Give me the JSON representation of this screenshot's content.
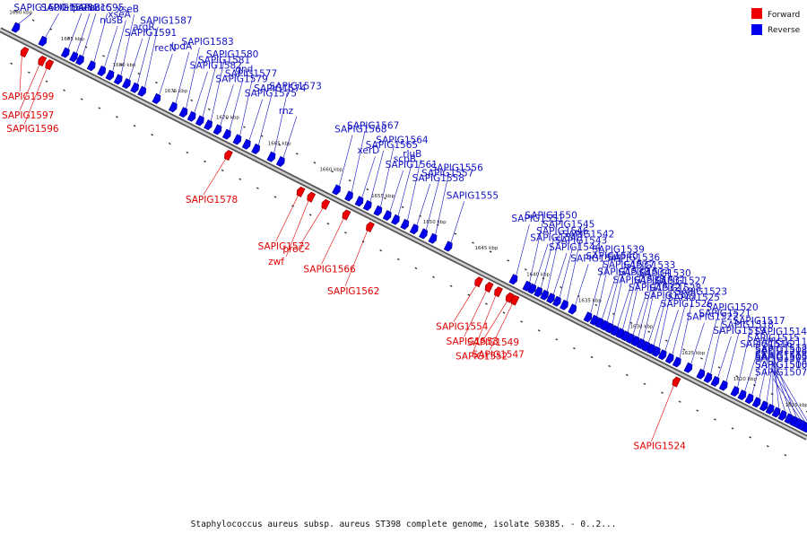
{
  "legend": {
    "forward_label": "Forward",
    "reverse_label": "Reverse",
    "forward_color": "#ee0000",
    "reverse_color": "#0000ee"
  },
  "caption": "Staphylococcus aureus subsp. aureus ST398 complete genome, isolate S0385. - 0..2...",
  "axis": {
    "start_kbp": 1690,
    "end_kbp": 1612,
    "tick_labels": [
      "1690 kbp",
      "1685 kbp",
      "1680 kbp",
      "1675 kbp",
      "1670 kbp",
      "1665 kbp",
      "1660 kbp",
      "1655 kbp",
      "1650 kbp",
      "1645 kbp",
      "1640 kbp",
      "1635 kbp",
      "1630 kbp",
      "1625 kbp",
      "1620 kbp",
      "1615 kbp"
    ],
    "tick_values": [
      1690,
      1685,
      1680,
      1675,
      1670,
      1665,
      1660,
      1655,
      1650,
      1645,
      1640,
      1635,
      1630,
      1625,
      1620,
      1615
    ]
  },
  "genes": [
    {
      "name": "SAPIG1600",
      "strand": "reverse",
      "pos": 1688.8
    },
    {
      "name": "SAPIG1599",
      "strand": "forward",
      "pos": 1687.3
    },
    {
      "name": "SAPIG1598",
      "strand": "reverse",
      "pos": 1686.2
    },
    {
      "name": "SAPIG1597",
      "strand": "forward",
      "pos": 1685.6
    },
    {
      "name": "SAPIG1596",
      "strand": "forward",
      "pos": 1684.9
    },
    {
      "name": "efp",
      "strand": "reverse",
      "pos": 1684.0
    },
    {
      "name": "SAPIG1595",
      "strand": "reverse",
      "pos": 1683.2
    },
    {
      "name": "accB",
      "strand": "reverse",
      "pos": 1682.6
    },
    {
      "name": "accC",
      "strand": "reverse",
      "pos": 1681.5
    },
    {
      "name": "nusB",
      "strand": "reverse",
      "pos": 1680.5
    },
    {
      "name": "xseA",
      "strand": "reverse",
      "pos": 1679.7
    },
    {
      "name": "xseB",
      "strand": "reverse",
      "pos": 1678.9
    },
    {
      "name": "SAPIG1591",
      "strand": "reverse",
      "pos": 1678.1
    },
    {
      "name": "argR",
      "strand": "reverse",
      "pos": 1677.3
    },
    {
      "name": "SAPIG1587",
      "strand": "reverse",
      "pos": 1676.6
    },
    {
      "name": "recN",
      "strand": "reverse",
      "pos": 1675.2
    },
    {
      "name": "lpdA",
      "strand": "reverse",
      "pos": 1673.6
    },
    {
      "name": "SAPIG1583",
      "strand": "reverse",
      "pos": 1672.6
    },
    {
      "name": "SAPIG1582",
      "strand": "reverse",
      "pos": 1671.8
    },
    {
      "name": "SAPIG1581",
      "strand": "reverse",
      "pos": 1671.0
    },
    {
      "name": "SAPIG1580",
      "strand": "reverse",
      "pos": 1670.2
    },
    {
      "name": "SAPIG1579",
      "strand": "reverse",
      "pos": 1669.3
    },
    {
      "name": "SAPIG1577",
      "strand": "reverse",
      "pos": 1668.4
    },
    {
      "name": "gnd",
      "strand": "reverse",
      "pos": 1667.4
    },
    {
      "name": "SAPIG1575",
      "strand": "reverse",
      "pos": 1666.5
    },
    {
      "name": "SAPIG1574",
      "strand": "reverse",
      "pos": 1665.6
    },
    {
      "name": "SAPIG1578",
      "strand": "forward",
      "pos": 1667.6
    },
    {
      "name": "SAPIG1573",
      "strand": "reverse",
      "pos": 1664.1
    },
    {
      "name": "rnz",
      "strand": "reverse",
      "pos": 1663.2
    },
    {
      "name": "SAPIG1572",
      "strand": "forward",
      "pos": 1660.6
    },
    {
      "name": "zwf",
      "strand": "forward",
      "pos": 1659.6
    },
    {
      "name": "SAPIG1568",
      "strand": "reverse",
      "pos": 1657.8
    },
    {
      "name": "proC",
      "strand": "forward",
      "pos": 1658.2
    },
    {
      "name": "SAPIG1567",
      "strand": "reverse",
      "pos": 1656.6
    },
    {
      "name": "xerD",
      "strand": "reverse",
      "pos": 1655.6
    },
    {
      "name": "SAPIG1566",
      "strand": "forward",
      "pos": 1656.2
    },
    {
      "name": "SAPIG1565",
      "strand": "reverse",
      "pos": 1654.8
    },
    {
      "name": "SAPIG1564",
      "strand": "reverse",
      "pos": 1653.8
    },
    {
      "name": "SAPIG1562",
      "strand": "forward",
      "pos": 1653.9
    },
    {
      "name": "SAPIG1561",
      "strand": "reverse",
      "pos": 1652.9
    },
    {
      "name": "scpB",
      "strand": "reverse",
      "pos": 1652.1
    },
    {
      "name": "rluB",
      "strand": "reverse",
      "pos": 1651.2
    },
    {
      "name": "SAPIG1558",
      "strand": "reverse",
      "pos": 1650.3
    },
    {
      "name": "SAPIG1557",
      "strand": "reverse",
      "pos": 1649.4
    },
    {
      "name": "SAPIG1556",
      "strand": "reverse",
      "pos": 1648.5
    },
    {
      "name": "SAPIG1555",
      "strand": "reverse",
      "pos": 1647.0
    },
    {
      "name": "SAPIG1554",
      "strand": "forward",
      "pos": 1643.4
    },
    {
      "name": "SAPIG1553",
      "strand": "forward",
      "pos": 1642.4
    },
    {
      "name": "SAPIG1552",
      "strand": "forward",
      "pos": 1641.5
    },
    {
      "name": "SAPIG1549",
      "strand": "forward",
      "pos": 1640.4
    },
    {
      "name": "SAPIG1547",
      "strand": "forward",
      "pos": 1639.9
    },
    {
      "name": "SAPIG1551",
      "strand": "reverse",
      "pos": 1640.7
    },
    {
      "name": "SAPIG1550",
      "strand": "reverse",
      "pos": 1639.4
    },
    {
      "name": "SAPIG1548",
      "strand": "reverse",
      "pos": 1638.9
    },
    {
      "name": "SAPIG1546",
      "strand": "reverse",
      "pos": 1638.3
    },
    {
      "name": "SAPIG1545",
      "strand": "reverse",
      "pos": 1637.7
    },
    {
      "name": "SAPIG1544",
      "strand": "reverse",
      "pos": 1637.1
    },
    {
      "name": "SAPIG1543",
      "strand": "reverse",
      "pos": 1636.5
    },
    {
      "name": "SAPIG1542",
      "strand": "reverse",
      "pos": 1635.8
    },
    {
      "name": "SAPIG1541",
      "strand": "reverse",
      "pos": 1635.0
    },
    {
      "name": "SAPIG1540",
      "strand": "reverse",
      "pos": 1633.5
    },
    {
      "name": "SAPIG1539",
      "strand": "reverse",
      "pos": 1632.9
    },
    {
      "name": "SAPIG1538",
      "strand": "reverse",
      "pos": 1632.4
    },
    {
      "name": "SAPIG1537",
      "strand": "reverse",
      "pos": 1631.9
    },
    {
      "name": "SAPIG1536",
      "strand": "reverse",
      "pos": 1631.4
    },
    {
      "name": "SAPIG1535",
      "strand": "reverse",
      "pos": 1630.9
    },
    {
      "name": "SAPIG1534",
      "strand": "reverse",
      "pos": 1630.4
    },
    {
      "name": "SAPIG1533",
      "strand": "reverse",
      "pos": 1629.9
    },
    {
      "name": "SAPIG1532",
      "strand": "reverse",
      "pos": 1629.4
    },
    {
      "name": "SAPIG1531",
      "strand": "reverse",
      "pos": 1628.9
    },
    {
      "name": "SAPIG1530",
      "strand": "reverse",
      "pos": 1628.4
    },
    {
      "name": "SAPIG1529",
      "strand": "reverse",
      "pos": 1627.9
    },
    {
      "name": "SAPIG1528",
      "strand": "reverse",
      "pos": 1627.4
    },
    {
      "name": "SAPIG1527",
      "strand": "reverse",
      "pos": 1626.9
    },
    {
      "name": "SAPIG1526",
      "strand": "reverse",
      "pos": 1626.3
    },
    {
      "name": "SAPIG1525",
      "strand": "reverse",
      "pos": 1625.6
    },
    {
      "name": "SAPIG1523",
      "strand": "reverse",
      "pos": 1624.9
    },
    {
      "name": "SAPIG1524",
      "strand": "forward",
      "pos": 1624.3
    },
    {
      "name": "SAPIG1522",
      "strand": "reverse",
      "pos": 1623.8
    },
    {
      "name": "SAPIG1521",
      "strand": "reverse",
      "pos": 1622.6
    },
    {
      "name": "SAPIG1520",
      "strand": "reverse",
      "pos": 1621.9
    },
    {
      "name": "SAPIG1519",
      "strand": "reverse",
      "pos": 1621.2
    },
    {
      "name": "SAPIG1518",
      "strand": "reverse",
      "pos": 1620.4
    },
    {
      "name": "SAPIG1517",
      "strand": "reverse",
      "pos": 1619.3
    },
    {
      "name": "SAPIG1516",
      "strand": "reverse",
      "pos": 1618.6
    },
    {
      "name": "SAPIG1515",
      "strand": "reverse",
      "pos": 1617.9
    },
    {
      "name": "SAPIG1514",
      "strand": "reverse",
      "pos": 1617.2
    },
    {
      "name": "SAPIG1513",
      "strand": "reverse",
      "pos": 1616.5
    },
    {
      "name": "SAPIG1512",
      "strand": "reverse",
      "pos": 1615.9
    },
    {
      "name": "SAPIG1511",
      "strand": "reverse",
      "pos": 1615.3
    },
    {
      "name": "SAPIG1510",
      "strand": "reverse",
      "pos": 1614.7
    },
    {
      "name": "SAPIG1509",
      "strand": "reverse",
      "pos": 1614.1
    },
    {
      "name": "SAPIG1508",
      "strand": "reverse",
      "pos": 1613.6
    },
    {
      "name": "SAPIG1507",
      "strand": "reverse",
      "pos": 1613.2
    },
    {
      "name": "SAPIG1506",
      "strand": "reverse",
      "pos": 1612.8
    },
    {
      "name": "SAPIG1505",
      "strand": "reverse",
      "pos": 1612.4
    }
  ]
}
